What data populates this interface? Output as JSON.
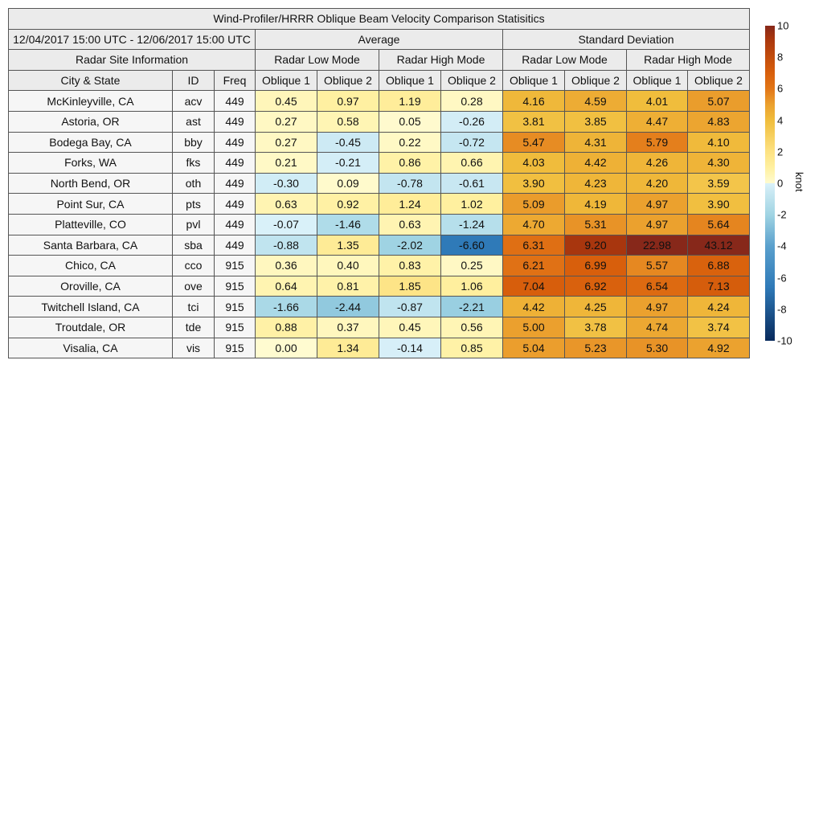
{
  "title": "Wind-Profiler/HRRR Oblique Beam Velocity Comparison Statisitics",
  "date_range": "12/04/2017 15:00 UTC - 12/06/2017 15:00 UTC",
  "groups": {
    "average": "Average",
    "std": "Standard Deviation"
  },
  "site_info": "Radar Site Information",
  "modes": {
    "low": "Radar Low Mode",
    "high": "Radar High Mode"
  },
  "columns": {
    "city": "City & State",
    "id": "ID",
    "freq": "Freq",
    "ob1": "Oblique 1",
    "ob2": "Oblique 2"
  },
  "colorbar": {
    "unit": "knot",
    "range": [
      -10,
      10
    ],
    "ticks": [
      "10",
      "8",
      "6",
      "4",
      "2",
      "0",
      "-2",
      "-4",
      "-6",
      "-8",
      "-10"
    ]
  },
  "chart_data": {
    "type": "heatmap",
    "title": "Wind-Profiler/HRRR Oblique Beam Velocity Comparison Statisitics",
    "value_columns": [
      "Average Radar Low Mode Oblique 1",
      "Average Radar Low Mode Oblique 2",
      "Average Radar High Mode Oblique 1",
      "Average Radar High Mode Oblique 2",
      "Standard Deviation Radar Low Mode Oblique 1",
      "Standard Deviation Radar Low Mode Oblique 2",
      "Standard Deviation Radar High Mode Oblique 1",
      "Standard Deviation Radar High Mode Oblique 2"
    ],
    "color_range": [
      -10,
      10
    ],
    "rows": [
      {
        "city": "McKinleyville, CA",
        "id": "acv",
        "freq": "449",
        "values": [
          "0.45",
          "0.97",
          "1.19",
          "0.28",
          "4.16",
          "4.59",
          "4.01",
          "5.07"
        ]
      },
      {
        "city": "Astoria, OR",
        "id": "ast",
        "freq": "449",
        "values": [
          "0.27",
          "0.58",
          "0.05",
          "-0.26",
          "3.81",
          "3.85",
          "4.47",
          "4.83"
        ]
      },
      {
        "city": "Bodega Bay, CA",
        "id": "bby",
        "freq": "449",
        "values": [
          "0.27",
          "-0.45",
          "0.22",
          "-0.72",
          "5.47",
          "4.31",
          "5.79",
          "4.10"
        ]
      },
      {
        "city": "Forks, WA",
        "id": "fks",
        "freq": "449",
        "values": [
          "0.21",
          "-0.21",
          "0.86",
          "0.66",
          "4.03",
          "4.42",
          "4.26",
          "4.30"
        ]
      },
      {
        "city": "North Bend, OR",
        "id": "oth",
        "freq": "449",
        "values": [
          "-0.30",
          "0.09",
          "-0.78",
          "-0.61",
          "3.90",
          "4.23",
          "4.20",
          "3.59"
        ]
      },
      {
        "city": "Point Sur, CA",
        "id": "pts",
        "freq": "449",
        "values": [
          "0.63",
          "0.92",
          "1.24",
          "1.02",
          "5.09",
          "4.19",
          "4.97",
          "3.90"
        ]
      },
      {
        "city": "Platteville, CO",
        "id": "pvl",
        "freq": "449",
        "values": [
          "-0.07",
          "-1.46",
          "0.63",
          "-1.24",
          "4.70",
          "5.31",
          "4.97",
          "5.64"
        ]
      },
      {
        "city": "Santa Barbara, CA",
        "id": "sba",
        "freq": "449",
        "values": [
          "-0.88",
          "1.35",
          "-2.02",
          "-6.60",
          "6.31",
          "9.20",
          "22.98",
          "43.12"
        ]
      },
      {
        "city": "Chico, CA",
        "id": "cco",
        "freq": "915",
        "values": [
          "0.36",
          "0.40",
          "0.83",
          "0.25",
          "6.21",
          "6.99",
          "5.57",
          "6.88"
        ]
      },
      {
        "city": "Oroville, CA",
        "id": "ove",
        "freq": "915",
        "values": [
          "0.64",
          "0.81",
          "1.85",
          "1.06",
          "7.04",
          "6.92",
          "6.54",
          "7.13"
        ]
      },
      {
        "city": "Twitchell Island, CA",
        "id": "tci",
        "freq": "915",
        "values": [
          "-1.66",
          "-2.44",
          "-0.87",
          "-2.21",
          "4.42",
          "4.25",
          "4.97",
          "4.24"
        ]
      },
      {
        "city": "Troutdale, OR",
        "id": "tde",
        "freq": "915",
        "values": [
          "0.88",
          "0.37",
          "0.45",
          "0.56",
          "5.00",
          "3.78",
          "4.74",
          "3.74"
        ]
      },
      {
        "city": "Visalia, CA",
        "id": "vis",
        "freq": "915",
        "values": [
          "0.00",
          "1.34",
          "-0.14",
          "0.85",
          "5.04",
          "5.23",
          "5.30",
          "4.92"
        ]
      }
    ]
  }
}
